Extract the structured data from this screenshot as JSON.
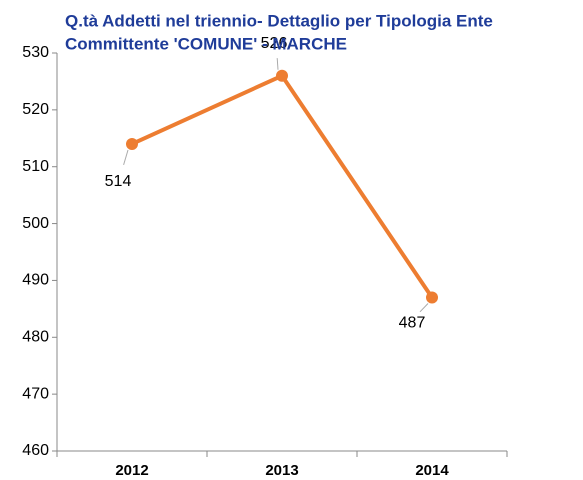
{
  "chart_data": {
    "type": "line",
    "title": "Q.tà Addetti nel triennio- Dettaglio per Tipologia Ente Committente 'COMUNE' - MARCHE",
    "title_lines": [
      "Q.tà Addetti nel triennio- Dettaglio per Tipologia Ente",
      "Committente 'COMUNE' - MARCHE"
    ],
    "categories": [
      "2012",
      "2013",
      "2014"
    ],
    "series": [
      {
        "name": "Addetti",
        "color": "#ed7d31",
        "values": [
          514,
          526,
          487
        ]
      }
    ],
    "ylim": [
      460,
      530
    ],
    "yticks": [
      460,
      470,
      480,
      490,
      500,
      510,
      520,
      530
    ],
    "grid": false
  }
}
